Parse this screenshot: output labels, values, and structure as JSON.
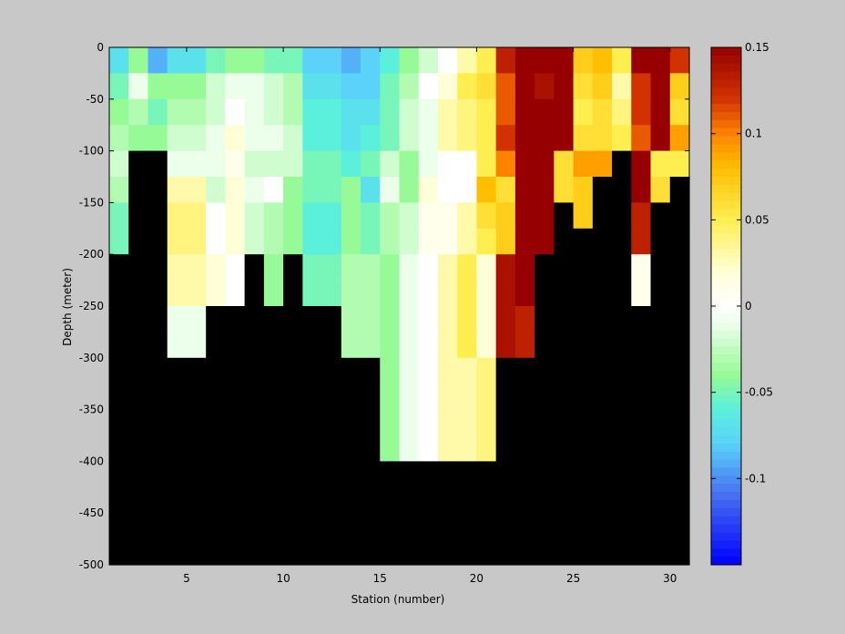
{
  "chart_data": {
    "type": "heatmap",
    "title": "",
    "xlabel": "Station (number)",
    "ylabel": "Depth (meter)",
    "xlim": [
      1,
      31
    ],
    "ylim": [
      -500,
      0
    ],
    "x_ticks": [
      5,
      10,
      15,
      20,
      25,
      30
    ],
    "y_ticks": [
      0,
      -50,
      -100,
      -150,
      -200,
      -250,
      -300,
      -350,
      -400,
      -450,
      -500
    ],
    "x": [
      1,
      2,
      3,
      4,
      5,
      6,
      7,
      8,
      9,
      10,
      11,
      12,
      13,
      14,
      15,
      16,
      17,
      18,
      19,
      20,
      21,
      22,
      23,
      24,
      25,
      26,
      27,
      28,
      29,
      30
    ],
    "depth_rows": [
      0,
      -25,
      -50,
      -75,
      -100,
      -125,
      -150,
      -175,
      -200,
      -225,
      -250,
      -275,
      -300,
      -325,
      -350,
      -375,
      -400,
      -425,
      -450,
      -475
    ],
    "values": [
      [
        -0.07,
        -0.04,
        -0.09,
        -0.07,
        -0.07,
        -0.05,
        -0.04,
        -0.04,
        -0.05,
        -0.05,
        -0.08,
        -0.08,
        -0.09,
        -0.08,
        -0.06,
        -0.04,
        -0.02,
        0.0,
        0.03,
        0.05,
        0.13,
        0.15,
        0.15,
        0.15,
        0.07,
        0.08,
        0.05,
        0.15,
        0.15,
        0.12
      ],
      [
        -0.05,
        -0.01,
        -0.04,
        -0.04,
        -0.04,
        -0.02,
        -0.01,
        -0.01,
        -0.02,
        -0.03,
        -0.07,
        -0.07,
        -0.08,
        -0.08,
        -0.05,
        -0.03,
        0.0,
        0.02,
        0.05,
        0.06,
        0.11,
        0.15,
        0.14,
        0.15,
        0.06,
        0.07,
        0.03,
        0.12,
        0.15,
        0.07
      ],
      [
        -0.04,
        -0.03,
        -0.05,
        -0.03,
        -0.03,
        -0.02,
        0.0,
        -0.01,
        -0.02,
        -0.03,
        -0.06,
        -0.06,
        -0.07,
        -0.07,
        -0.05,
        -0.02,
        -0.01,
        0.03,
        0.04,
        0.05,
        0.11,
        0.15,
        0.15,
        0.15,
        0.05,
        0.06,
        0.04,
        0.12,
        0.15,
        0.06
      ],
      [
        -0.03,
        -0.04,
        -0.04,
        -0.02,
        -0.02,
        -0.01,
        0.02,
        -0.01,
        -0.01,
        -0.02,
        -0.06,
        -0.06,
        -0.07,
        -0.06,
        -0.05,
        -0.02,
        -0.01,
        0.03,
        0.04,
        0.05,
        0.12,
        0.15,
        0.15,
        0.15,
        0.06,
        0.06,
        0.05,
        0.11,
        0.15,
        0.09
      ],
      [
        -0.02,
        null,
        null,
        -0.01,
        -0.01,
        -0.01,
        0.01,
        -0.02,
        -0.02,
        -0.02,
        -0.05,
        -0.05,
        -0.06,
        -0.05,
        -0.02,
        -0.04,
        -0.01,
        0.0,
        0.0,
        0.05,
        0.1,
        0.15,
        0.15,
        0.06,
        0.09,
        0.09,
        null,
        0.15,
        0.05,
        0.05
      ],
      [
        -0.03,
        null,
        null,
        0.03,
        0.03,
        -0.02,
        0.02,
        -0.01,
        0.0,
        -0.04,
        -0.05,
        -0.05,
        -0.04,
        -0.07,
        -0.01,
        -0.04,
        0.02,
        0.0,
        0.0,
        0.08,
        0.06,
        0.15,
        0.15,
        0.06,
        0.07,
        null,
        null,
        0.15,
        0.06,
        null
      ],
      [
        -0.05,
        null,
        null,
        0.04,
        0.04,
        0.0,
        0.02,
        -0.02,
        -0.03,
        -0.04,
        -0.06,
        -0.06,
        -0.04,
        -0.05,
        -0.03,
        -0.02,
        0.01,
        0.01,
        0.03,
        0.06,
        0.07,
        0.15,
        0.15,
        null,
        0.07,
        null,
        null,
        0.13,
        null,
        null
      ],
      [
        -0.05,
        null,
        null,
        0.04,
        0.04,
        0.0,
        0.02,
        -0.02,
        -0.03,
        -0.04,
        -0.06,
        -0.06,
        -0.04,
        -0.05,
        -0.03,
        -0.02,
        0.01,
        0.01,
        0.03,
        0.05,
        0.07,
        0.15,
        0.15,
        null,
        null,
        null,
        null,
        0.13,
        null,
        null
      ],
      [
        null,
        null,
        null,
        0.03,
        0.03,
        0.02,
        0.0,
        null,
        -0.04,
        null,
        -0.05,
        -0.05,
        -0.03,
        -0.03,
        -0.04,
        -0.01,
        0.0,
        0.03,
        0.05,
        0.02,
        0.14,
        0.15,
        null,
        null,
        null,
        null,
        null,
        0.01,
        null,
        null
      ],
      [
        null,
        null,
        null,
        0.03,
        0.03,
        0.02,
        0.0,
        null,
        -0.04,
        null,
        -0.05,
        -0.05,
        -0.03,
        -0.03,
        -0.04,
        -0.01,
        0.0,
        0.03,
        0.05,
        0.02,
        0.14,
        0.15,
        null,
        null,
        null,
        null,
        null,
        0.01,
        null,
        null
      ],
      [
        null,
        null,
        null,
        -0.01,
        -0.01,
        null,
        null,
        null,
        null,
        null,
        null,
        null,
        -0.03,
        -0.03,
        -0.04,
        -0.01,
        0.0,
        0.03,
        0.05,
        0.02,
        0.14,
        0.13,
        null,
        null,
        null,
        null,
        null,
        null,
        null,
        null
      ],
      [
        null,
        null,
        null,
        -0.01,
        -0.01,
        null,
        null,
        null,
        null,
        null,
        null,
        null,
        -0.03,
        -0.03,
        -0.04,
        -0.01,
        0.0,
        0.03,
        0.05,
        0.02,
        0.14,
        0.13,
        null,
        null,
        null,
        null,
        null,
        null,
        null,
        null
      ],
      [
        null,
        null,
        null,
        null,
        null,
        null,
        null,
        null,
        null,
        null,
        null,
        null,
        null,
        null,
        -0.04,
        -0.01,
        0.0,
        0.03,
        0.03,
        0.04,
        null,
        null,
        null,
        null,
        null,
        null,
        null,
        null,
        null,
        null
      ],
      [
        null,
        null,
        null,
        null,
        null,
        null,
        null,
        null,
        null,
        null,
        null,
        null,
        null,
        null,
        -0.04,
        -0.01,
        0.0,
        0.03,
        0.03,
        0.04,
        null,
        null,
        null,
        null,
        null,
        null,
        null,
        null,
        null,
        null
      ],
      [
        null,
        null,
        null,
        null,
        null,
        null,
        null,
        null,
        null,
        null,
        null,
        null,
        null,
        null,
        -0.04,
        -0.01,
        0.0,
        0.03,
        0.03,
        0.04,
        null,
        null,
        null,
        null,
        null,
        null,
        null,
        null,
        null,
        null
      ],
      [
        null,
        null,
        null,
        null,
        null,
        null,
        null,
        null,
        null,
        null,
        null,
        null,
        null,
        null,
        -0.04,
        -0.01,
        0.0,
        0.03,
        0.03,
        0.04,
        null,
        null,
        null,
        null,
        null,
        null,
        null,
        null,
        null,
        null
      ],
      [
        null,
        null,
        null,
        null,
        null,
        null,
        null,
        null,
        null,
        null,
        null,
        null,
        null,
        null,
        null,
        null,
        null,
        null,
        null,
        null,
        null,
        null,
        null,
        null,
        null,
        null,
        null,
        null,
        null,
        null
      ],
      [
        null,
        null,
        null,
        null,
        null,
        null,
        null,
        null,
        null,
        null,
        null,
        null,
        null,
        null,
        null,
        null,
        null,
        null,
        null,
        null,
        null,
        null,
        null,
        null,
        null,
        null,
        null,
        null,
        null,
        null
      ],
      [
        null,
        null,
        null,
        null,
        null,
        null,
        null,
        null,
        null,
        null,
        null,
        null,
        null,
        null,
        null,
        null,
        null,
        null,
        null,
        null,
        null,
        null,
        null,
        null,
        null,
        null,
        null,
        null,
        null,
        null
      ],
      [
        null,
        null,
        null,
        null,
        null,
        null,
        null,
        null,
        null,
        null,
        null,
        null,
        null,
        null,
        null,
        null,
        null,
        null,
        null,
        null,
        null,
        null,
        null,
        null,
        null,
        null,
        null,
        null,
        null,
        null
      ]
    ],
    "colorbar": {
      "range": [
        -0.15,
        0.15
      ],
      "ticks": [
        0.15,
        0.1,
        0.05,
        0,
        -0.05,
        -0.1
      ],
      "tick_labels": [
        "0.15",
        "0.1",
        "0.05",
        "0",
        "-0.05",
        "-0.1"
      ],
      "colormap": "jet-white-center"
    },
    "missing_color": "#000000",
    "background_color": "#c8c8c8",
    "grid": false
  }
}
